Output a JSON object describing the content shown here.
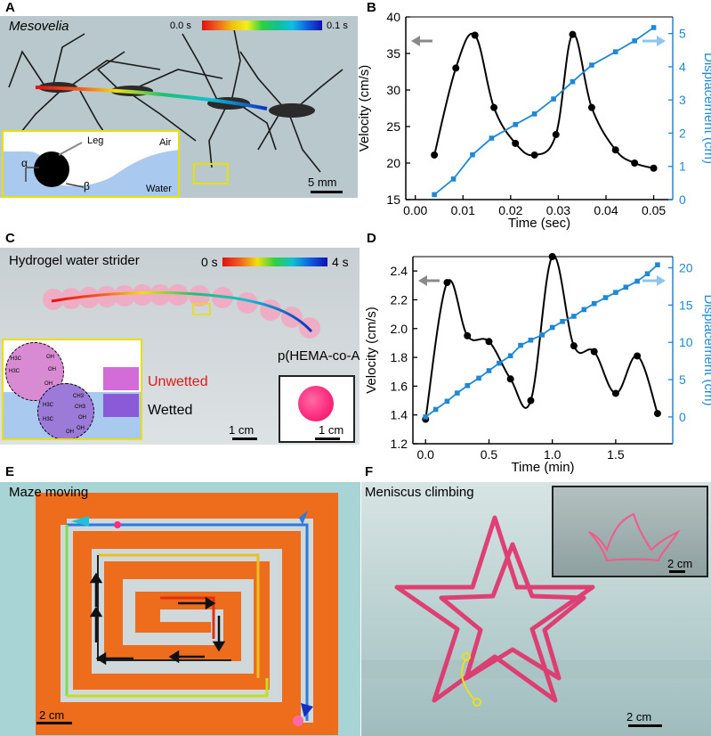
{
  "panels": {
    "a": {
      "letter": "A",
      "title": "Mesovelia",
      "time_start": "0.0 s",
      "time_end": "0.1 s",
      "inset_labels": {
        "leg": "Leg",
        "air": "Air",
        "alpha": "α",
        "beta": "β",
        "water": "Water"
      },
      "scale": "5 mm"
    },
    "b": {
      "letter": "B"
    },
    "c": {
      "letter": "C",
      "title": "Hydrogel water strider",
      "time_start": "0 s",
      "time_end": "4 s",
      "unwetted": "Unwetted",
      "wetted": "Wetted",
      "material": "p(HEMA-co-AA)",
      "scale_main": "1 cm",
      "scale_inset": "1 cm",
      "molecule_labels": [
        "H3C",
        "H3C",
        "OH",
        "OH",
        "OH",
        "CH3",
        "CH3",
        "OH",
        "OH",
        "H3C",
        "H3C",
        "OH"
      ]
    },
    "d": {
      "letter": "D"
    },
    "e": {
      "letter": "E",
      "title": "Maze moving",
      "scale": "2 cm"
    },
    "f": {
      "letter": "F",
      "title": "Meniscus climbing",
      "scale_main": "2 cm",
      "scale_inset": "2 cm"
    }
  },
  "colors": {
    "velocity": "#000000",
    "displacement": "#1f88d6",
    "highlight": "#e8e000",
    "lego": "#ee6d1d",
    "hydrogel": "#ff2d7f"
  },
  "chart_data": [
    {
      "id": "B",
      "type": "line",
      "xlabel": "Time (sec)",
      "ylabel": "Velocity (cm/s)",
      "y2label": "Displacement (cm)",
      "xlim": [
        -0.002,
        0.054
      ],
      "ylim": [
        15,
        40
      ],
      "y2lim": [
        0,
        5.5
      ],
      "xticks": [
        "0.00",
        "0.01",
        "0.02",
        "0.03",
        "0.04",
        "0.05"
      ],
      "yticks": [
        "15",
        "20",
        "25",
        "30",
        "35",
        "40"
      ],
      "y2ticks": [
        "0",
        "1",
        "2",
        "3",
        "4",
        "5"
      ],
      "series": [
        {
          "axis": "left",
          "x": [
            0.004,
            0.0085,
            0.0125,
            0.0165,
            0.021,
            0.025,
            0.0295,
            0.033,
            0.037,
            0.042,
            0.046,
            0.05
          ],
          "values": [
            21.1,
            33.0,
            37.5,
            27.6,
            22.7,
            21.1,
            23.9,
            37.6,
            27.6,
            21.8,
            20.0,
            19.3
          ]
        },
        {
          "axis": "right",
          "x": [
            0.004,
            0.008,
            0.012,
            0.016,
            0.021,
            0.025,
            0.029,
            0.033,
            0.037,
            0.042,
            0.046,
            0.05
          ],
          "values": [
            0.15,
            0.62,
            1.35,
            1.85,
            2.26,
            2.58,
            3.03,
            3.55,
            4.05,
            4.45,
            4.78,
            5.18
          ]
        }
      ]
    },
    {
      "id": "D",
      "type": "line",
      "xlabel": "Time (min)",
      "ylabel": "Velocity (cm/s)",
      "y2label": "Displacement (cm)",
      "xlim": [
        -0.1,
        1.95
      ],
      "ylim": [
        1.2,
        2.5
      ],
      "y2lim": [
        -3.6,
        21.5
      ],
      "xticks": [
        "0.0",
        "0.5",
        "1.0",
        "1.5"
      ],
      "yticks": [
        "1.2",
        "1.4",
        "1.6",
        "1.8",
        "2.0",
        "2.2",
        "2.4"
      ],
      "y2ticks": [
        "0",
        "5",
        "10",
        "15",
        "20"
      ],
      "series": [
        {
          "axis": "left",
          "x": [
            0.0,
            0.17,
            0.33,
            0.5,
            0.67,
            0.83,
            1.0,
            1.17,
            1.33,
            1.5,
            1.67,
            1.83
          ],
          "values": [
            1.37,
            2.32,
            1.95,
            1.91,
            1.65,
            1.5,
            2.5,
            1.88,
            1.84,
            1.55,
            1.81,
            1.41
          ]
        },
        {
          "axis": "right",
          "x": [
            0.0,
            0.08,
            0.17,
            0.25,
            0.33,
            0.42,
            0.5,
            0.58,
            0.67,
            0.75,
            0.83,
            0.92,
            1.0,
            1.08,
            1.17,
            1.25,
            1.33,
            1.42,
            1.5,
            1.58,
            1.67,
            1.75,
            1.83
          ],
          "values": [
            0.0,
            1.0,
            2.1,
            3.2,
            4.2,
            5.2,
            6.2,
            7.2,
            8.2,
            9.6,
            10.3,
            11.0,
            12.0,
            12.8,
            13.5,
            14.4,
            15.2,
            16.0,
            16.7,
            17.4,
            18.2,
            19.2,
            20.4
          ]
        }
      ]
    }
  ]
}
